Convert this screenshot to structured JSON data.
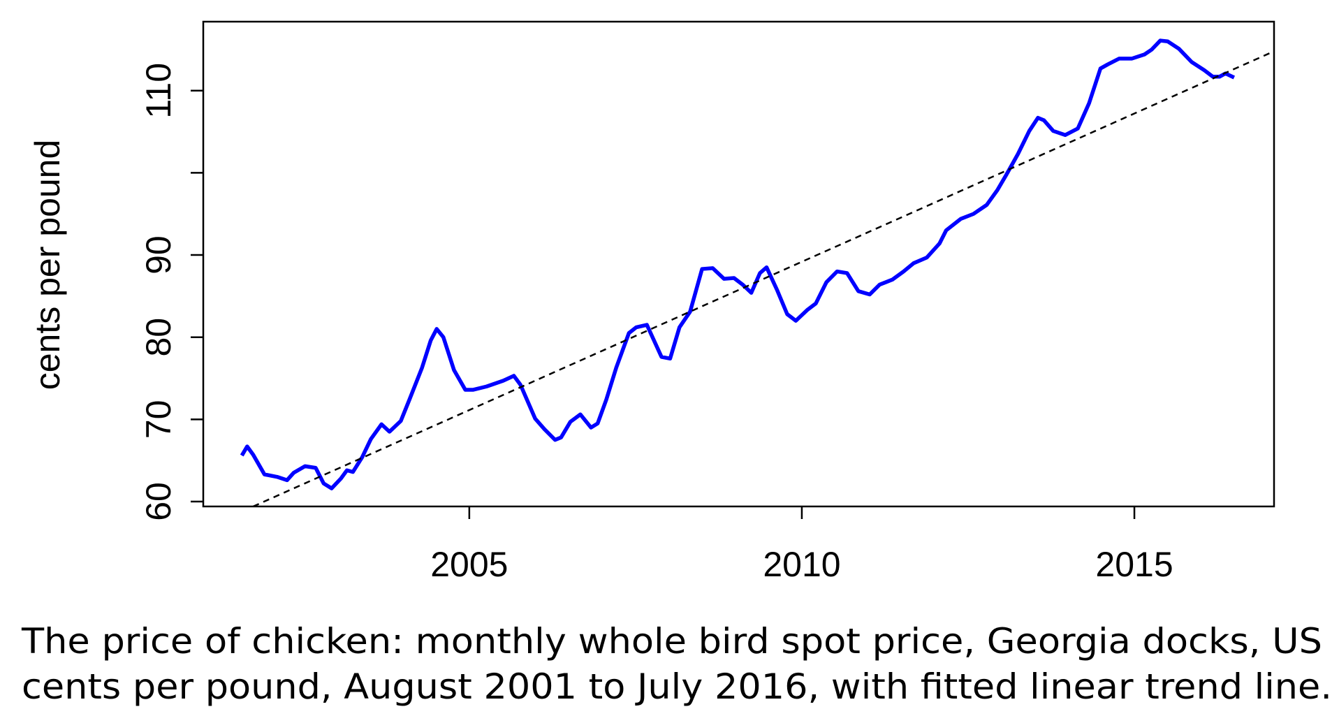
{
  "chart_data": {
    "type": "line",
    "y_label": "cents per pound",
    "caption": [
      "The price of chicken: monthly whole bird spot price, Georgia docks, US",
      "cents per pound, August 2001 to July 2016, with fitted linear trend line."
    ],
    "xlim": [
      2001.0,
      2017.1
    ],
    "xticks": [
      2005,
      2010,
      2015
    ],
    "ylim": [
      59.4,
      118.4
    ],
    "yticks": [
      60,
      70,
      80,
      90,
      100,
      110
    ],
    "y_tick_labels_shown": [
      60,
      70,
      80,
      90,
      110
    ],
    "series": [
      {
        "color": "#0000ff",
        "dashed": false,
        "x": [
          2001.58,
          2001.66,
          2001.75,
          2001.92,
          2002.11,
          2002.26,
          2002.36,
          2002.53,
          2002.69,
          2002.81,
          2002.93,
          2003.07,
          2003.16,
          2003.25,
          2003.39,
          2003.52,
          2003.68,
          2003.8,
          2003.97,
          2004.1,
          2004.29,
          2004.42,
          2004.51,
          2004.61,
          2004.77,
          2004.94,
          2005.06,
          2005.26,
          2005.51,
          2005.67,
          2005.77,
          2005.99,
          2006.13,
          2006.29,
          2006.38,
          2006.52,
          2006.67,
          2006.83,
          2006.93,
          2007.06,
          2007.21,
          2007.4,
          2007.51,
          2007.67,
          2007.89,
          2008.02,
          2008.16,
          2008.32,
          2008.5,
          2008.66,
          2008.83,
          2008.98,
          2009.11,
          2009.24,
          2009.37,
          2009.47,
          2009.63,
          2009.78,
          2009.91,
          2010.08,
          2010.21,
          2010.37,
          2010.53,
          2010.68,
          2010.85,
          2011.02,
          2011.17,
          2011.36,
          2011.53,
          2011.68,
          2011.88,
          2012.07,
          2012.17,
          2012.39,
          2012.58,
          2012.78,
          2012.94,
          2013.07,
          2013.25,
          2013.42,
          2013.55,
          2013.64,
          2013.78,
          2013.96,
          2014.15,
          2014.32,
          2014.49,
          2014.6,
          2014.77,
          2014.96,
          2015.15,
          2015.26,
          2015.39,
          2015.5,
          2015.67,
          2015.86,
          2016.05,
          2016.18,
          2016.28,
          2016.37,
          2016.5
        ],
        "values": [
          65.6,
          66.7,
          65.7,
          63.3,
          63.0,
          62.6,
          63.5,
          64.3,
          64.1,
          62.2,
          61.6,
          62.8,
          63.8,
          63.6,
          65.4,
          67.6,
          69.4,
          68.5,
          69.8,
          72.4,
          76.3,
          79.6,
          81.0,
          80.0,
          76.0,
          73.6,
          73.6,
          74.0,
          74.7,
          75.3,
          74.2,
          70.1,
          68.8,
          67.5,
          67.8,
          69.7,
          70.6,
          69.0,
          69.5,
          72.4,
          76.3,
          80.5,
          81.2,
          81.5,
          77.6,
          77.4,
          81.2,
          83.1,
          88.3,
          88.4,
          87.1,
          87.2,
          86.4,
          85.4,
          87.8,
          88.5,
          85.7,
          82.8,
          82.0,
          83.3,
          84.1,
          86.7,
          88.0,
          87.8,
          85.6,
          85.2,
          86.4,
          87.0,
          88.0,
          89.0,
          89.7,
          91.4,
          93.0,
          94.4,
          95.0,
          96.1,
          97.9,
          99.7,
          102.3,
          105.1,
          106.7,
          106.4,
          105.1,
          104.6,
          105.4,
          108.5,
          112.7,
          113.2,
          113.9,
          113.9,
          114.4,
          115.0,
          116.1,
          116.0,
          115.1,
          113.5,
          112.5,
          111.7,
          111.7,
          112.1,
          111.6
        ]
      },
      {
        "color": "#000000",
        "dashed": true,
        "x": [
          2001.75,
          2017.1
        ],
        "values": [
          59.4,
          114.8
        ]
      }
    ]
  }
}
